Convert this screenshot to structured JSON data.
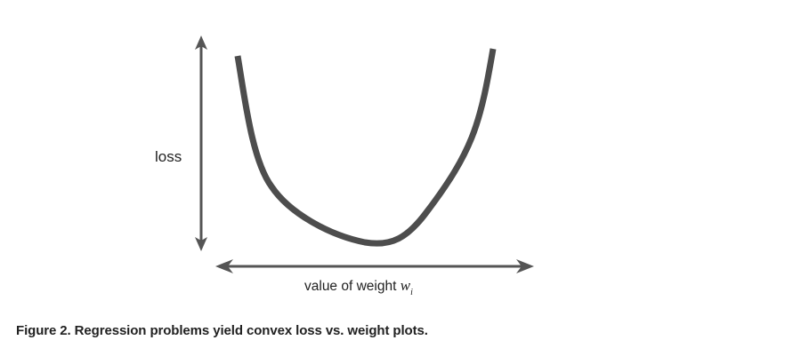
{
  "diagram": {
    "y_axis_label": "loss",
    "x_axis_label": "value of weight ",
    "x_axis_variable": "w",
    "x_axis_subscript": "i",
    "curve_color": "#4d4d4d",
    "axis_color": "#555555"
  },
  "caption": {
    "text": "Figure 2. Regression problems yield convex loss vs. weight plots."
  }
}
